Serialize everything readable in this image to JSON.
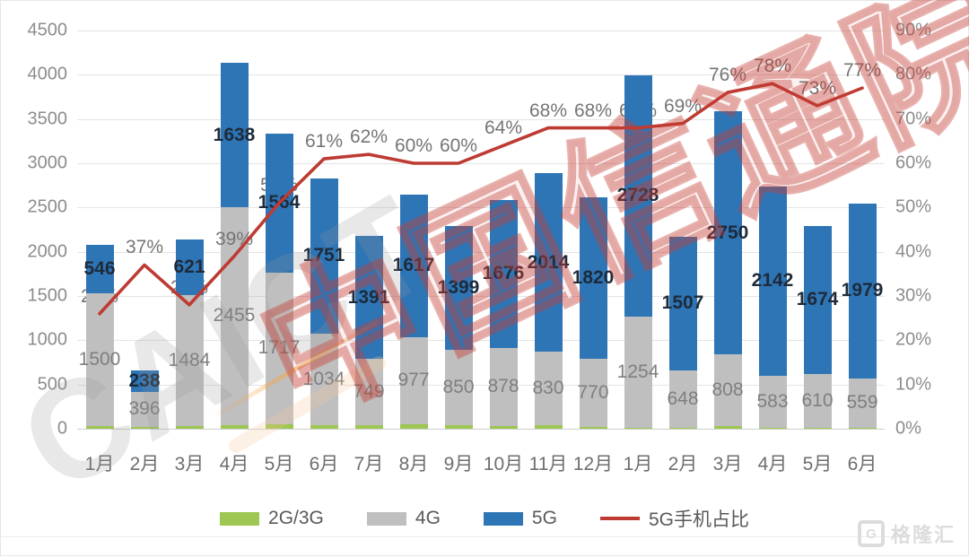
{
  "chart_data": {
    "type": "bar",
    "subtype": "stacked-bars-with-line",
    "categories": [
      "1月",
      "2月",
      "3月",
      "4月",
      "5月",
      "6月",
      "7月",
      "8月",
      "9月",
      "10月",
      "11月",
      "12月",
      "1月",
      "2月",
      "3月",
      "4月",
      "5月",
      "6月"
    ],
    "series": [
      {
        "name": "2G/3G",
        "color": "#9DC652",
        "values": [
          30,
          20,
          30,
          45,
          50,
          45,
          40,
          55,
          45,
          35,
          40,
          25,
          15,
          15,
          30,
          15,
          10,
          10
        ],
        "labels_shown": false,
        "note": "values estimated from bar heights; no data labels visible"
      },
      {
        "name": "4G",
        "color": "#BFBFBF",
        "values": [
          1500,
          396,
          1484,
          2455,
          1717,
          1034,
          749,
          977,
          850,
          878,
          830,
          770,
          1254,
          648,
          808,
          583,
          610,
          559
        ],
        "labels_shown": true
      },
      {
        "name": "5G",
        "color": "#2E75B6",
        "values": [
          546,
          238,
          621,
          1638,
          1564,
          1751,
          1391,
          1617,
          1399,
          1676,
          2014,
          1820,
          2728,
          1507,
          2750,
          2142,
          1674,
          1979
        ],
        "labels_shown": true
      }
    ],
    "line_series": {
      "name": "5G手机占比",
      "color": "#BE3B33",
      "values_pct": [
        26,
        37,
        28,
        39,
        51,
        61,
        62,
        60,
        60,
        64,
        68,
        68,
        68,
        69,
        76,
        78,
        73,
        77
      ],
      "label_suffix": "%",
      "label_occluded_by_bars": [
        true,
        false,
        true,
        false,
        true,
        false,
        false,
        false,
        false,
        false,
        false,
        false,
        true,
        false,
        false,
        false,
        false,
        false
      ]
    },
    "left_axis": {
      "min": 0,
      "max": 4500,
      "step": 500
    },
    "right_axis": {
      "min": 0,
      "max": 90,
      "step": 10,
      "suffix": "%"
    },
    "grid": true,
    "legend_position": "bottom",
    "legend": [
      "2G/3G",
      "4G",
      "5G",
      "5G手机占比"
    ],
    "label_colors": {
      "g4": "#7f7f7f",
      "g5": "#1d2b3a",
      "pct": "#757575"
    }
  },
  "watermarks": {
    "brand_cn": "中国信通院",
    "brand_en": "CAICT",
    "corner_logo_letter": "G",
    "corner_logo_text": "格隆汇"
  }
}
